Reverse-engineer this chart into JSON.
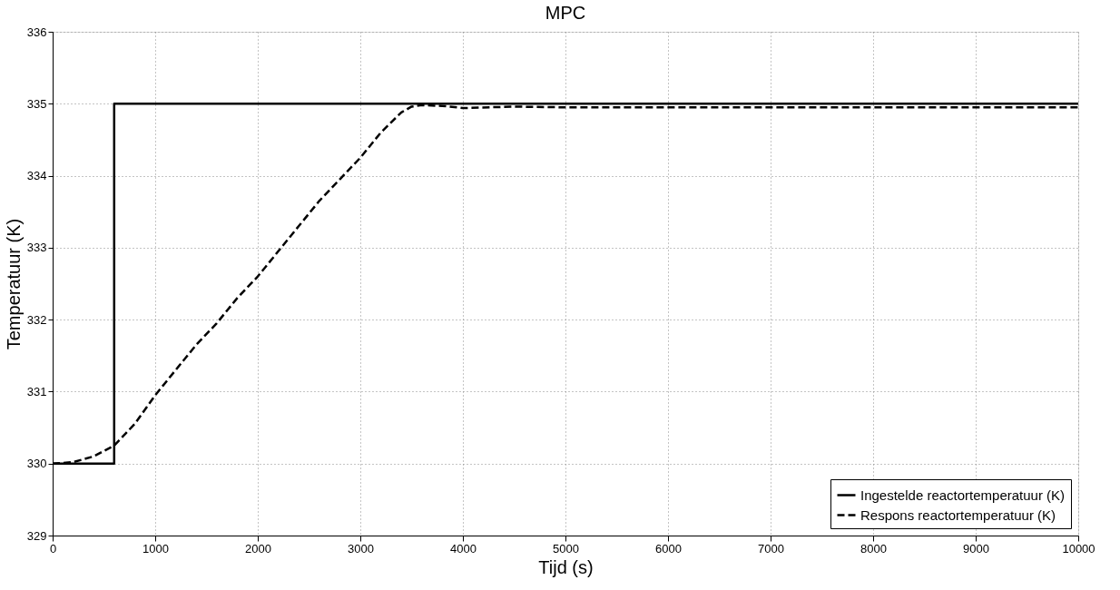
{
  "chart_data": {
    "type": "line",
    "title": "MPC",
    "xlabel": "Tijd (s)",
    "ylabel": "Temperatuur (K)",
    "xlim": [
      0,
      10000
    ],
    "xticks": [
      0,
      1000,
      2000,
      3000,
      4000,
      5000,
      6000,
      7000,
      8000,
      9000,
      10000
    ],
    "ylim": [
      329,
      336
    ],
    "yticks": [
      329,
      330,
      331,
      332,
      333,
      334,
      335,
      336
    ],
    "grid": true,
    "legend": "bottom right",
    "marker": "none",
    "series": [
      {
        "name": "Ingestelde reactortemperatuur (K)",
        "color": "#000000",
        "line_style": "solid",
        "x": [
          0,
          600,
          600,
          10000
        ],
        "values": [
          330,
          330,
          335,
          335
        ]
      },
      {
        "name": "Respons reactortemperatuur (K)",
        "color": "#000000",
        "line_style": "dashed",
        "x": [
          0,
          200,
          400,
          600,
          800,
          1000,
          1200,
          1400,
          1600,
          1800,
          2000,
          2200,
          2400,
          2600,
          2800,
          3000,
          3200,
          3400,
          3500,
          3600,
          3800,
          4000,
          4500,
          5000,
          10000
        ],
        "values": [
          330,
          330.02,
          330.1,
          330.25,
          330.55,
          330.95,
          331.3,
          331.65,
          331.95,
          332.3,
          332.6,
          332.95,
          333.3,
          333.65,
          333.95,
          334.25,
          334.6,
          334.88,
          334.96,
          334.98,
          334.97,
          334.94,
          334.96,
          334.95,
          334.95
        ]
      }
    ]
  }
}
